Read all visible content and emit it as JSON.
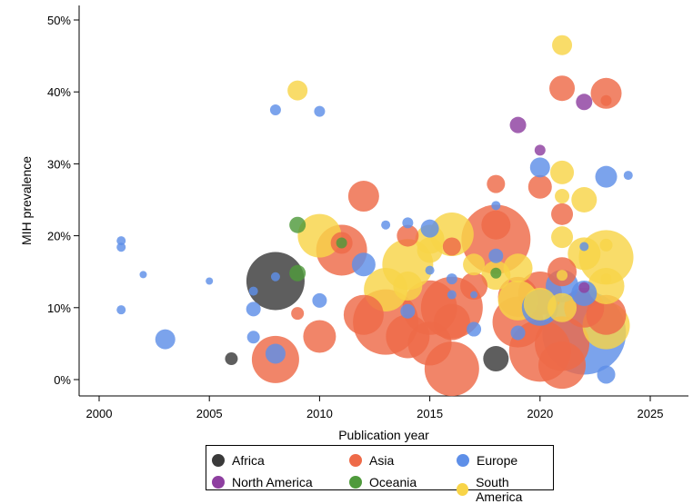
{
  "chart_data": {
    "type": "scatter",
    "bubble": true,
    "xlabel": "Publication year",
    "ylabel": "MIH prevalence",
    "xlim": [
      1999,
      2027
    ],
    "ylim": [
      -2,
      52
    ],
    "xticks": [
      2000,
      2005,
      2010,
      2015,
      2020,
      2025
    ],
    "yticks": [
      0,
      10,
      20,
      30,
      40,
      50
    ],
    "ytick_labels": [
      "0%",
      "10%",
      "20%",
      "30%",
      "40%",
      "50%"
    ],
    "legend": {
      "position": "bottom",
      "entries": [
        {
          "name": "Africa",
          "color": "#3a3a3a"
        },
        {
          "name": "Asia",
          "color": "#ee6a48"
        },
        {
          "name": "Europe",
          "color": "#5e8fe8"
        },
        {
          "name": "North America",
          "color": "#8e3fa0"
        },
        {
          "name": "Oceania",
          "color": "#4f9a3c"
        },
        {
          "name": "South America",
          "color": "#f8d448"
        }
      ]
    },
    "series": [
      {
        "name": "Africa",
        "color": "#3a3a3a",
        "points": [
          {
            "x": 2006,
            "y": 2.9,
            "s": 7
          },
          {
            "x": 2008,
            "y": 13.7,
            "s": 32
          },
          {
            "x": 2018,
            "y": 2.9,
            "s": 14
          }
        ]
      },
      {
        "name": "Asia",
        "color": "#ee6a48",
        "points": [
          {
            "x": 2008,
            "y": 2.8,
            "s": 26
          },
          {
            "x": 2009,
            "y": 9.2,
            "s": 7
          },
          {
            "x": 2010,
            "y": 6.0,
            "s": 18
          },
          {
            "x": 2011,
            "y": 18.0,
            "s": 28
          },
          {
            "x": 2011,
            "y": 19.0,
            "s": 12
          },
          {
            "x": 2012,
            "y": 25.5,
            "s": 17
          },
          {
            "x": 2012,
            "y": 9.0,
            "s": 22
          },
          {
            "x": 2013,
            "y": 8.0,
            "s": 36
          },
          {
            "x": 2014,
            "y": 6.0,
            "s": 24
          },
          {
            "x": 2014,
            "y": 20.0,
            "s": 12
          },
          {
            "x": 2015,
            "y": 10.0,
            "s": 30
          },
          {
            "x": 2015,
            "y": 5.0,
            "s": 24
          },
          {
            "x": 2016,
            "y": 1.5,
            "s": 30
          },
          {
            "x": 2016,
            "y": 8.0,
            "s": 20
          },
          {
            "x": 2016,
            "y": 10.0,
            "s": 34
          },
          {
            "x": 2016,
            "y": 18.5,
            "s": 10
          },
          {
            "x": 2017,
            "y": 13.0,
            "s": 15
          },
          {
            "x": 2018,
            "y": 27.2,
            "s": 10
          },
          {
            "x": 2018,
            "y": 19.5,
            "s": 38
          },
          {
            "x": 2018,
            "y": 21.5,
            "s": 16
          },
          {
            "x": 2019,
            "y": 8.0,
            "s": 28
          },
          {
            "x": 2019,
            "y": 11.5,
            "s": 22
          },
          {
            "x": 2020,
            "y": 26.8,
            "s": 13
          },
          {
            "x": 2020,
            "y": 4.0,
            "s": 34
          },
          {
            "x": 2020,
            "y": 12.0,
            "s": 24
          },
          {
            "x": 2021,
            "y": 40.5,
            "s": 14
          },
          {
            "x": 2021,
            "y": 23.0,
            "s": 12
          },
          {
            "x": 2021,
            "y": 15.0,
            "s": 16
          },
          {
            "x": 2021,
            "y": 2.0,
            "s": 26
          },
          {
            "x": 2021,
            "y": 5.0,
            "s": 30
          },
          {
            "x": 2022,
            "y": 10.0,
            "s": 22
          },
          {
            "x": 2023,
            "y": 39.8,
            "s": 17
          },
          {
            "x": 2023,
            "y": 38.8,
            "s": 6
          },
          {
            "x": 2023,
            "y": 9.0,
            "s": 22
          }
        ]
      },
      {
        "name": "Europe",
        "color": "#5e8fe8",
        "points": [
          {
            "x": 2001,
            "y": 19.3,
            "s": 5
          },
          {
            "x": 2001,
            "y": 18.4,
            "s": 5
          },
          {
            "x": 2001,
            "y": 9.7,
            "s": 5
          },
          {
            "x": 2002,
            "y": 14.6,
            "s": 4
          },
          {
            "x": 2003,
            "y": 5.6,
            "s": 11
          },
          {
            "x": 2005,
            "y": 13.7,
            "s": 4
          },
          {
            "x": 2007,
            "y": 12.3,
            "s": 5
          },
          {
            "x": 2007,
            "y": 9.8,
            "s": 8
          },
          {
            "x": 2007,
            "y": 5.9,
            "s": 7
          },
          {
            "x": 2008,
            "y": 37.5,
            "s": 6
          },
          {
            "x": 2008,
            "y": 14.3,
            "s": 5
          },
          {
            "x": 2008,
            "y": 3.6,
            "s": 11
          },
          {
            "x": 2010,
            "y": 37.3,
            "s": 6
          },
          {
            "x": 2010,
            "y": 11.0,
            "s": 8
          },
          {
            "x": 2012,
            "y": 16.0,
            "s": 13
          },
          {
            "x": 2013,
            "y": 21.5,
            "s": 5
          },
          {
            "x": 2014,
            "y": 21.8,
            "s": 6
          },
          {
            "x": 2014,
            "y": 9.5,
            "s": 8
          },
          {
            "x": 2015,
            "y": 21.0,
            "s": 10
          },
          {
            "x": 2015,
            "y": 15.2,
            "s": 5
          },
          {
            "x": 2016,
            "y": 11.8,
            "s": 5
          },
          {
            "x": 2016,
            "y": 14.0,
            "s": 6
          },
          {
            "x": 2017,
            "y": 7.0,
            "s": 8
          },
          {
            "x": 2017,
            "y": 11.8,
            "s": 4
          },
          {
            "x": 2018,
            "y": 24.2,
            "s": 5
          },
          {
            "x": 2018,
            "y": 17.2,
            "s": 8
          },
          {
            "x": 2019,
            "y": 6.5,
            "s": 8
          },
          {
            "x": 2020,
            "y": 29.5,
            "s": 11
          },
          {
            "x": 2020,
            "y": 10.0,
            "s": 20
          },
          {
            "x": 2021,
            "y": 13.0,
            "s": 18
          },
          {
            "x": 2022,
            "y": 6.5,
            "s": 46
          },
          {
            "x": 2022,
            "y": 18.5,
            "s": 5
          },
          {
            "x": 2022,
            "y": 12.0,
            "s": 14
          },
          {
            "x": 2023,
            "y": 28.2,
            "s": 12
          },
          {
            "x": 2023,
            "y": 0.7,
            "s": 10
          },
          {
            "x": 2024,
            "y": 28.4,
            "s": 5
          }
        ]
      },
      {
        "name": "North America",
        "color": "#8e3fa0",
        "points": [
          {
            "x": 2019,
            "y": 35.4,
            "s": 9
          },
          {
            "x": 2020,
            "y": 31.9,
            "s": 6
          },
          {
            "x": 2022,
            "y": 38.6,
            "s": 9
          },
          {
            "x": 2022,
            "y": 12.8,
            "s": 6
          }
        ]
      },
      {
        "name": "Oceania",
        "color": "#4f9a3c",
        "points": [
          {
            "x": 2009,
            "y": 21.5,
            "s": 9
          },
          {
            "x": 2009,
            "y": 14.8,
            "s": 9
          },
          {
            "x": 2011,
            "y": 19.0,
            "s": 6
          },
          {
            "x": 2018,
            "y": 14.8,
            "s": 6
          }
        ]
      },
      {
        "name": "South America",
        "color": "#f8d448",
        "points": [
          {
            "x": 2009,
            "y": 40.2,
            "s": 11
          },
          {
            "x": 2010,
            "y": 20.0,
            "s": 24
          },
          {
            "x": 2013,
            "y": 12.5,
            "s": 24
          },
          {
            "x": 2014,
            "y": 16.0,
            "s": 28
          },
          {
            "x": 2014,
            "y": 13.0,
            "s": 16
          },
          {
            "x": 2015,
            "y": 18.0,
            "s": 14
          },
          {
            "x": 2015,
            "y": 19.5,
            "s": 16
          },
          {
            "x": 2016,
            "y": 20.2,
            "s": 24
          },
          {
            "x": 2017,
            "y": 16.0,
            "s": 12
          },
          {
            "x": 2018,
            "y": 14.5,
            "s": 16
          },
          {
            "x": 2019,
            "y": 11.0,
            "s": 22
          },
          {
            "x": 2019,
            "y": 15.5,
            "s": 16
          },
          {
            "x": 2020,
            "y": 10.5,
            "s": 18
          },
          {
            "x": 2021,
            "y": 46.5,
            "s": 11
          },
          {
            "x": 2021,
            "y": 28.8,
            "s": 13
          },
          {
            "x": 2021,
            "y": 25.5,
            "s": 8
          },
          {
            "x": 2021,
            "y": 19.8,
            "s": 12
          },
          {
            "x": 2021,
            "y": 14.5,
            "s": 6
          },
          {
            "x": 2021,
            "y": 10.0,
            "s": 16
          },
          {
            "x": 2022,
            "y": 25.0,
            "s": 14
          },
          {
            "x": 2022,
            "y": 17.5,
            "s": 18
          },
          {
            "x": 2023,
            "y": 18.7,
            "s": 7
          },
          {
            "x": 2023,
            "y": 14.0,
            "s": 6
          },
          {
            "x": 2023,
            "y": 17.0,
            "s": 30
          },
          {
            "x": 2023,
            "y": 13.0,
            "s": 20
          },
          {
            "x": 2023,
            "y": 7.5,
            "s": 26
          }
        ]
      }
    ]
  }
}
